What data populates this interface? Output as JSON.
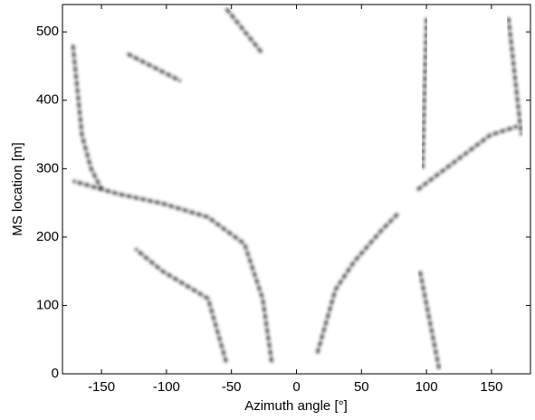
{
  "chart_data": {
    "type": "line",
    "xlabel": "Azimuth angle [°]",
    "ylabel": "MS location [m]",
    "xlim": [
      -180,
      180
    ],
    "xticks": [
      -150,
      -100,
      -50,
      0,
      50,
      100,
      150
    ],
    "ylim": [
      0,
      540
    ],
    "yticks": [
      0,
      100,
      200,
      300,
      400,
      500
    ],
    "color": "#2a2a2a",
    "series": [
      {
        "x": [
          -19,
          -26,
          -40,
          -68,
          -103,
          -137,
          -172
        ],
        "values": [
          17,
          110,
          190,
          229,
          249,
          263,
          282
        ]
      },
      {
        "x": [
          -54,
          -68,
          -103,
          -124
        ],
        "values": [
          17,
          110,
          150,
          183
        ]
      },
      {
        "x": [
          -172,
          -165,
          -158,
          -150
        ],
        "values": [
          481,
          349,
          300,
          270
        ]
      },
      {
        "x": [
          -130,
          -89
        ],
        "values": [
          468,
          428
        ]
      },
      {
        "x": [
          -54,
          -26
        ],
        "values": [
          534,
          468
        ]
      },
      {
        "x": [
          16,
          30,
          44,
          65,
          79
        ],
        "values": [
          30,
          123,
          163,
          209,
          236
        ]
      },
      {
        "x": [
          93,
          121,
          149,
          170
        ],
        "values": [
          269,
          309,
          349,
          362
        ]
      },
      {
        "x": [
          100,
          97
        ],
        "values": [
          520,
          300
        ]
      },
      {
        "x": [
          95,
          110
        ],
        "values": [
          150,
          5
        ]
      },
      {
        "x": [
          163,
          173
        ],
        "values": [
          521,
          349
        ]
      }
    ]
  }
}
